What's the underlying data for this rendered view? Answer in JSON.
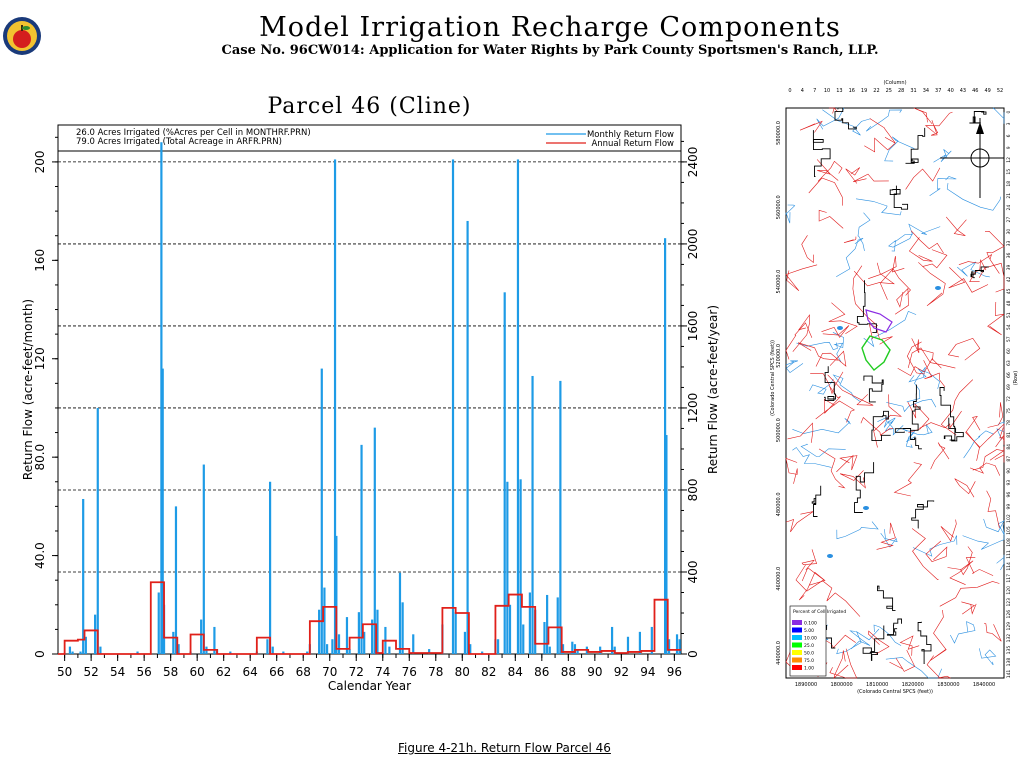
{
  "header": {
    "title": "Model Irrigation Recharge Components",
    "subtitle": "Case No. 96CW014: Application for Water Rights by Park County Sportsmen's Ranch, LLP."
  },
  "caption": "Figure 4-21h.  Return Flow Parcel 46",
  "chart_data": {
    "type": "bar",
    "title": "Parcel 46 (Cline)",
    "info_lines": [
      "26.0 Acres Irrigated (%Acres per Cell in MONTHRF.PRN)",
      "79.0 Acres Irrigated (Total Acreage in ARFR.PRN)"
    ],
    "xlabel": "Calendar Year",
    "ylabel_left": "Return Flow (acre-feet/month)",
    "ylabel_right": "Return Flow (acre-feet/year)",
    "xlim": [
      1949.5,
      1996.5
    ],
    "ylim_left": [
      0,
      215
    ],
    "ylim_right": [
      0,
      2580
    ],
    "x_ticks": [
      "50",
      "52",
      "54",
      "56",
      "58",
      "60",
      "62",
      "64",
      "66",
      "68",
      "70",
      "72",
      "74",
      "76",
      "78",
      "80",
      "82",
      "84",
      "86",
      "88",
      "90",
      "92",
      "94",
      "96"
    ],
    "y_ticks_left": [
      "0",
      "40.0",
      "80.0",
      "120",
      "160",
      "200"
    ],
    "y_ticks_right": [
      "0",
      "400",
      "800",
      "1200",
      "1600",
      "2000",
      "2400"
    ],
    "grid": "horizontal dashed",
    "legend_position": "top-right",
    "colors": {
      "monthly": "#1e9be6",
      "annual": "#e0201a"
    },
    "series": [
      {
        "name": "Monthly Return Flow",
        "points": [
          [
            1950.4,
            3
          ],
          [
            1950.6,
            1
          ],
          [
            1951.2,
            1
          ],
          [
            1951.4,
            63
          ],
          [
            1951.6,
            7
          ],
          [
            1952.3,
            16
          ],
          [
            1952.5,
            100
          ],
          [
            1952.7,
            3
          ],
          [
            1955.5,
            1
          ],
          [
            1957.1,
            25
          ],
          [
            1957.3,
            208
          ],
          [
            1957.4,
            116
          ],
          [
            1957.5,
            20
          ],
          [
            1958.2,
            9
          ],
          [
            1958.4,
            60
          ],
          [
            1958.6,
            4
          ],
          [
            1959.5,
            1
          ],
          [
            1960.3,
            14
          ],
          [
            1960.5,
            77
          ],
          [
            1960.7,
            3
          ],
          [
            1961.3,
            11
          ],
          [
            1961.5,
            2
          ],
          [
            1962.5,
            1
          ],
          [
            1964.5,
            1
          ],
          [
            1965.3,
            6
          ],
          [
            1965.5,
            70
          ],
          [
            1965.7,
            3
          ],
          [
            1966.5,
            1
          ],
          [
            1968.3,
            1
          ],
          [
            1968.5,
            4
          ],
          [
            1969.2,
            18
          ],
          [
            1969.4,
            116
          ],
          [
            1969.6,
            27
          ],
          [
            1969.8,
            4
          ],
          [
            1970.2,
            6
          ],
          [
            1970.4,
            201
          ],
          [
            1970.5,
            48
          ],
          [
            1970.7,
            8
          ],
          [
            1971.3,
            15
          ],
          [
            1971.5,
            2
          ],
          [
            1972.2,
            17
          ],
          [
            1972.4,
            85
          ],
          [
            1972.6,
            9
          ],
          [
            1973.2,
            14
          ],
          [
            1973.4,
            92
          ],
          [
            1973.6,
            18
          ],
          [
            1974.2,
            11
          ],
          [
            1974.5,
            3
          ],
          [
            1975.3,
            33
          ],
          [
            1975.5,
            21
          ],
          [
            1976.3,
            8
          ],
          [
            1977.5,
            2
          ],
          [
            1978.5,
            12
          ],
          [
            1979.3,
            201
          ],
          [
            1979.5,
            17
          ],
          [
            1980.2,
            9
          ],
          [
            1980.4,
            176
          ],
          [
            1980.6,
            4
          ],
          [
            1981.5,
            1
          ],
          [
            1982.5,
            6
          ],
          [
            1982.7,
            6
          ],
          [
            1983.2,
            147
          ],
          [
            1983.4,
            70
          ],
          [
            1983.6,
            20
          ],
          [
            1984.2,
            201
          ],
          [
            1984.4,
            71
          ],
          [
            1984.6,
            12
          ],
          [
            1985.1,
            25
          ],
          [
            1985.3,
            113
          ],
          [
            1985.5,
            18
          ],
          [
            1986.2,
            13
          ],
          [
            1986.4,
            24
          ],
          [
            1986.6,
            3
          ],
          [
            1987.2,
            23
          ],
          [
            1987.4,
            111
          ],
          [
            1987.6,
            4
          ],
          [
            1988.3,
            5
          ],
          [
            1988.5,
            4
          ],
          [
            1988.7,
            2
          ],
          [
            1989.4,
            3
          ],
          [
            1990.4,
            3
          ],
          [
            1991.3,
            11
          ],
          [
            1991.5,
            3
          ],
          [
            1992.5,
            7
          ],
          [
            1993.4,
            9
          ],
          [
            1994.3,
            11
          ],
          [
            1995.3,
            169
          ],
          [
            1995.4,
            89
          ],
          [
            1995.6,
            6
          ],
          [
            1996.2,
            8
          ],
          [
            1996.4,
            6
          ]
        ]
      },
      {
        "name": "Annual Return Flow",
        "steps": [
          [
            1949.5,
            0
          ],
          [
            1950,
            65
          ],
          [
            1951,
            70
          ],
          [
            1951.5,
            115
          ],
          [
            1952.5,
            0
          ],
          [
            1956,
            0
          ],
          [
            1956.5,
            350
          ],
          [
            1957.5,
            80
          ],
          [
            1958.5,
            0
          ],
          [
            1959.5,
            95
          ],
          [
            1960.5,
            20
          ],
          [
            1961.5,
            0
          ],
          [
            1964.5,
            80
          ],
          [
            1965.5,
            0
          ],
          [
            1968.5,
            160
          ],
          [
            1969.5,
            230
          ],
          [
            1970.5,
            25
          ],
          [
            1971.5,
            80
          ],
          [
            1972.5,
            145
          ],
          [
            1973.5,
            5
          ],
          [
            1974,
            65
          ],
          [
            1975,
            25
          ],
          [
            1976,
            5
          ],
          [
            1977,
            5
          ],
          [
            1978.5,
            225
          ],
          [
            1979.5,
            200
          ],
          [
            1980.5,
            0
          ],
          [
            1982.5,
            235
          ],
          [
            1983.5,
            290
          ],
          [
            1984.5,
            230
          ],
          [
            1985.5,
            50
          ],
          [
            1986.5,
            130
          ],
          [
            1987.5,
            10
          ],
          [
            1988.5,
            20
          ],
          [
            1989.5,
            10
          ],
          [
            1990.5,
            15
          ],
          [
            1991.5,
            5
          ],
          [
            1992.5,
            10
          ],
          [
            1993.5,
            15
          ],
          [
            1994.5,
            265
          ],
          [
            1995.5,
            20
          ],
          [
            1996.5,
            20
          ]
        ]
      }
    ]
  },
  "map_data": {
    "x_ticks_top": [
      "0",
      "4",
      "7",
      "10",
      "13",
      "16",
      "19",
      "22",
      "25",
      "28",
      "31",
      "34",
      "37",
      "40",
      "43",
      "46",
      "49",
      "52"
    ],
    "top_label": "(Column)",
    "y_ticks_left": [
      "580000.0",
      "560000.0",
      "540000.0",
      "520000.0",
      "500000.0",
      "480000.0",
      "460000.0",
      "440000.0"
    ],
    "left_label": "(Colorado Central SPCS (feet))",
    "x_ticks_bottom": [
      "1890000",
      "1800000",
      "1810000",
      "1820000",
      "1830000",
      "1840000"
    ],
    "bottom_label": "(Colorado Central SPCS (feet))",
    "right_label": "(Row)",
    "legend_title": "Percent of Cell Irrigated",
    "legend_items": [
      {
        "label": "0.100",
        "color": "#8a2be2"
      },
      {
        "label": "5.00",
        "color": "#0000ff"
      },
      {
        "label": "10.00",
        "color": "#00bfff"
      },
      {
        "label": "25.0",
        "color": "#00ff00"
      },
      {
        "label": "50.0",
        "color": "#ffff00"
      },
      {
        "label": "75.0",
        "color": "#ff8c00"
      },
      {
        "label": "1.00",
        "color": "#ff0000"
      }
    ]
  }
}
